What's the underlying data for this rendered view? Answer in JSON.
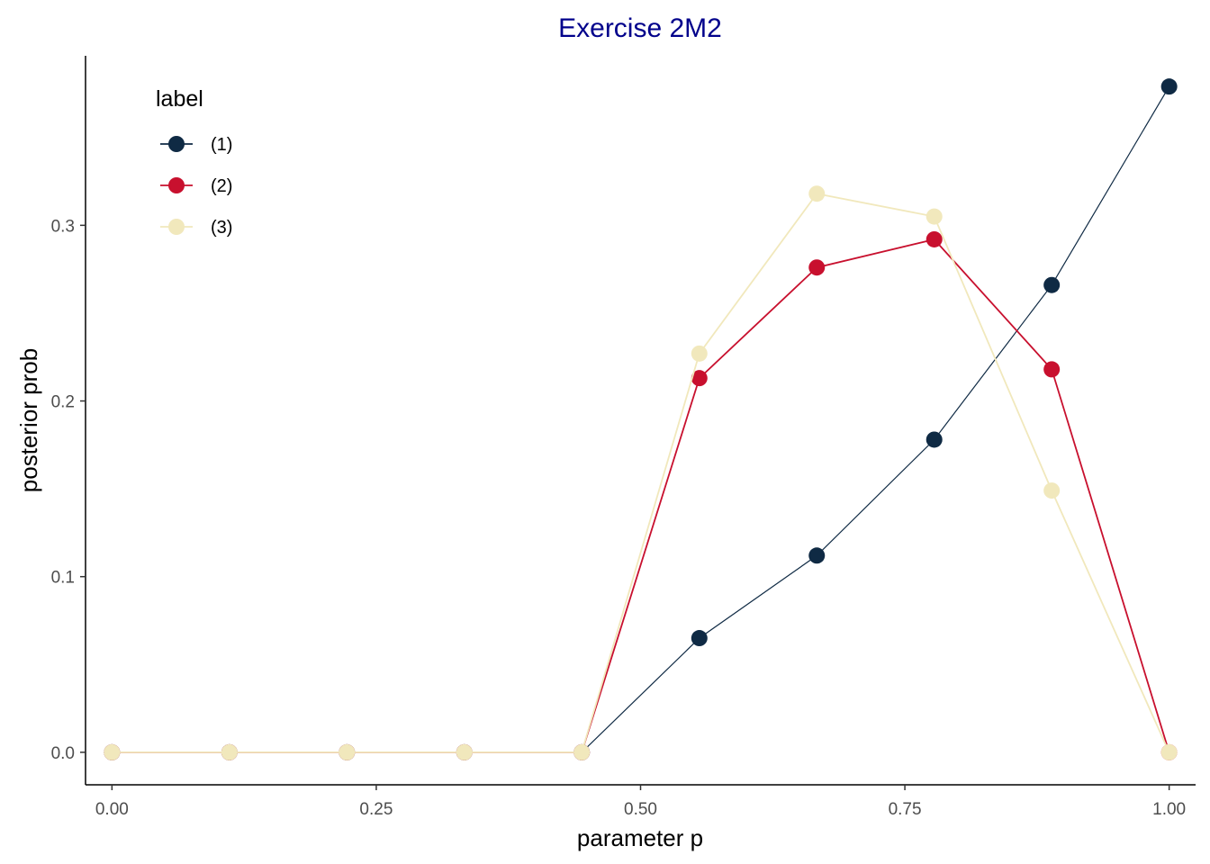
{
  "chart_data": {
    "type": "line",
    "title": "Exercise 2M2",
    "xlabel": "parameter p",
    "ylabel": "posterior prob",
    "xlim": [
      -0.025,
      1.025
    ],
    "ylim": [
      -0.0185,
      0.3965
    ],
    "x_ticks": [
      0.0,
      0.25,
      0.5,
      0.75,
      1.0
    ],
    "x_tick_labels": [
      "0.00",
      "0.25",
      "0.50",
      "0.75",
      "1.00"
    ],
    "y_ticks": [
      0.0,
      0.1,
      0.2,
      0.3
    ],
    "y_tick_labels": [
      "0.0",
      "0.1",
      "0.2",
      "0.3"
    ],
    "grid": false,
    "legend": {
      "title": "label",
      "placement": "top-left"
    },
    "x": [
      0.0,
      0.1111,
      0.2222,
      0.3333,
      0.4444,
      0.5556,
      0.6667,
      0.7778,
      0.8889,
      1.0
    ],
    "series": [
      {
        "name": "(1)",
        "color": "#0F2A44",
        "values": [
          0.0,
          0.0,
          0.0,
          0.0,
          0.0,
          0.065,
          0.112,
          0.178,
          0.266,
          0.379
        ]
      },
      {
        "name": "(2)",
        "color": "#C8102E",
        "values": [
          0.0,
          0.0,
          0.0,
          0.0,
          0.0,
          0.213,
          0.276,
          0.292,
          0.218,
          0.0
        ]
      },
      {
        "name": "(3)",
        "color": "#F1E8BC",
        "values": [
          0.0,
          0.0,
          0.0,
          0.0,
          0.0,
          0.227,
          0.318,
          0.305,
          0.149,
          0.0
        ]
      }
    ]
  }
}
